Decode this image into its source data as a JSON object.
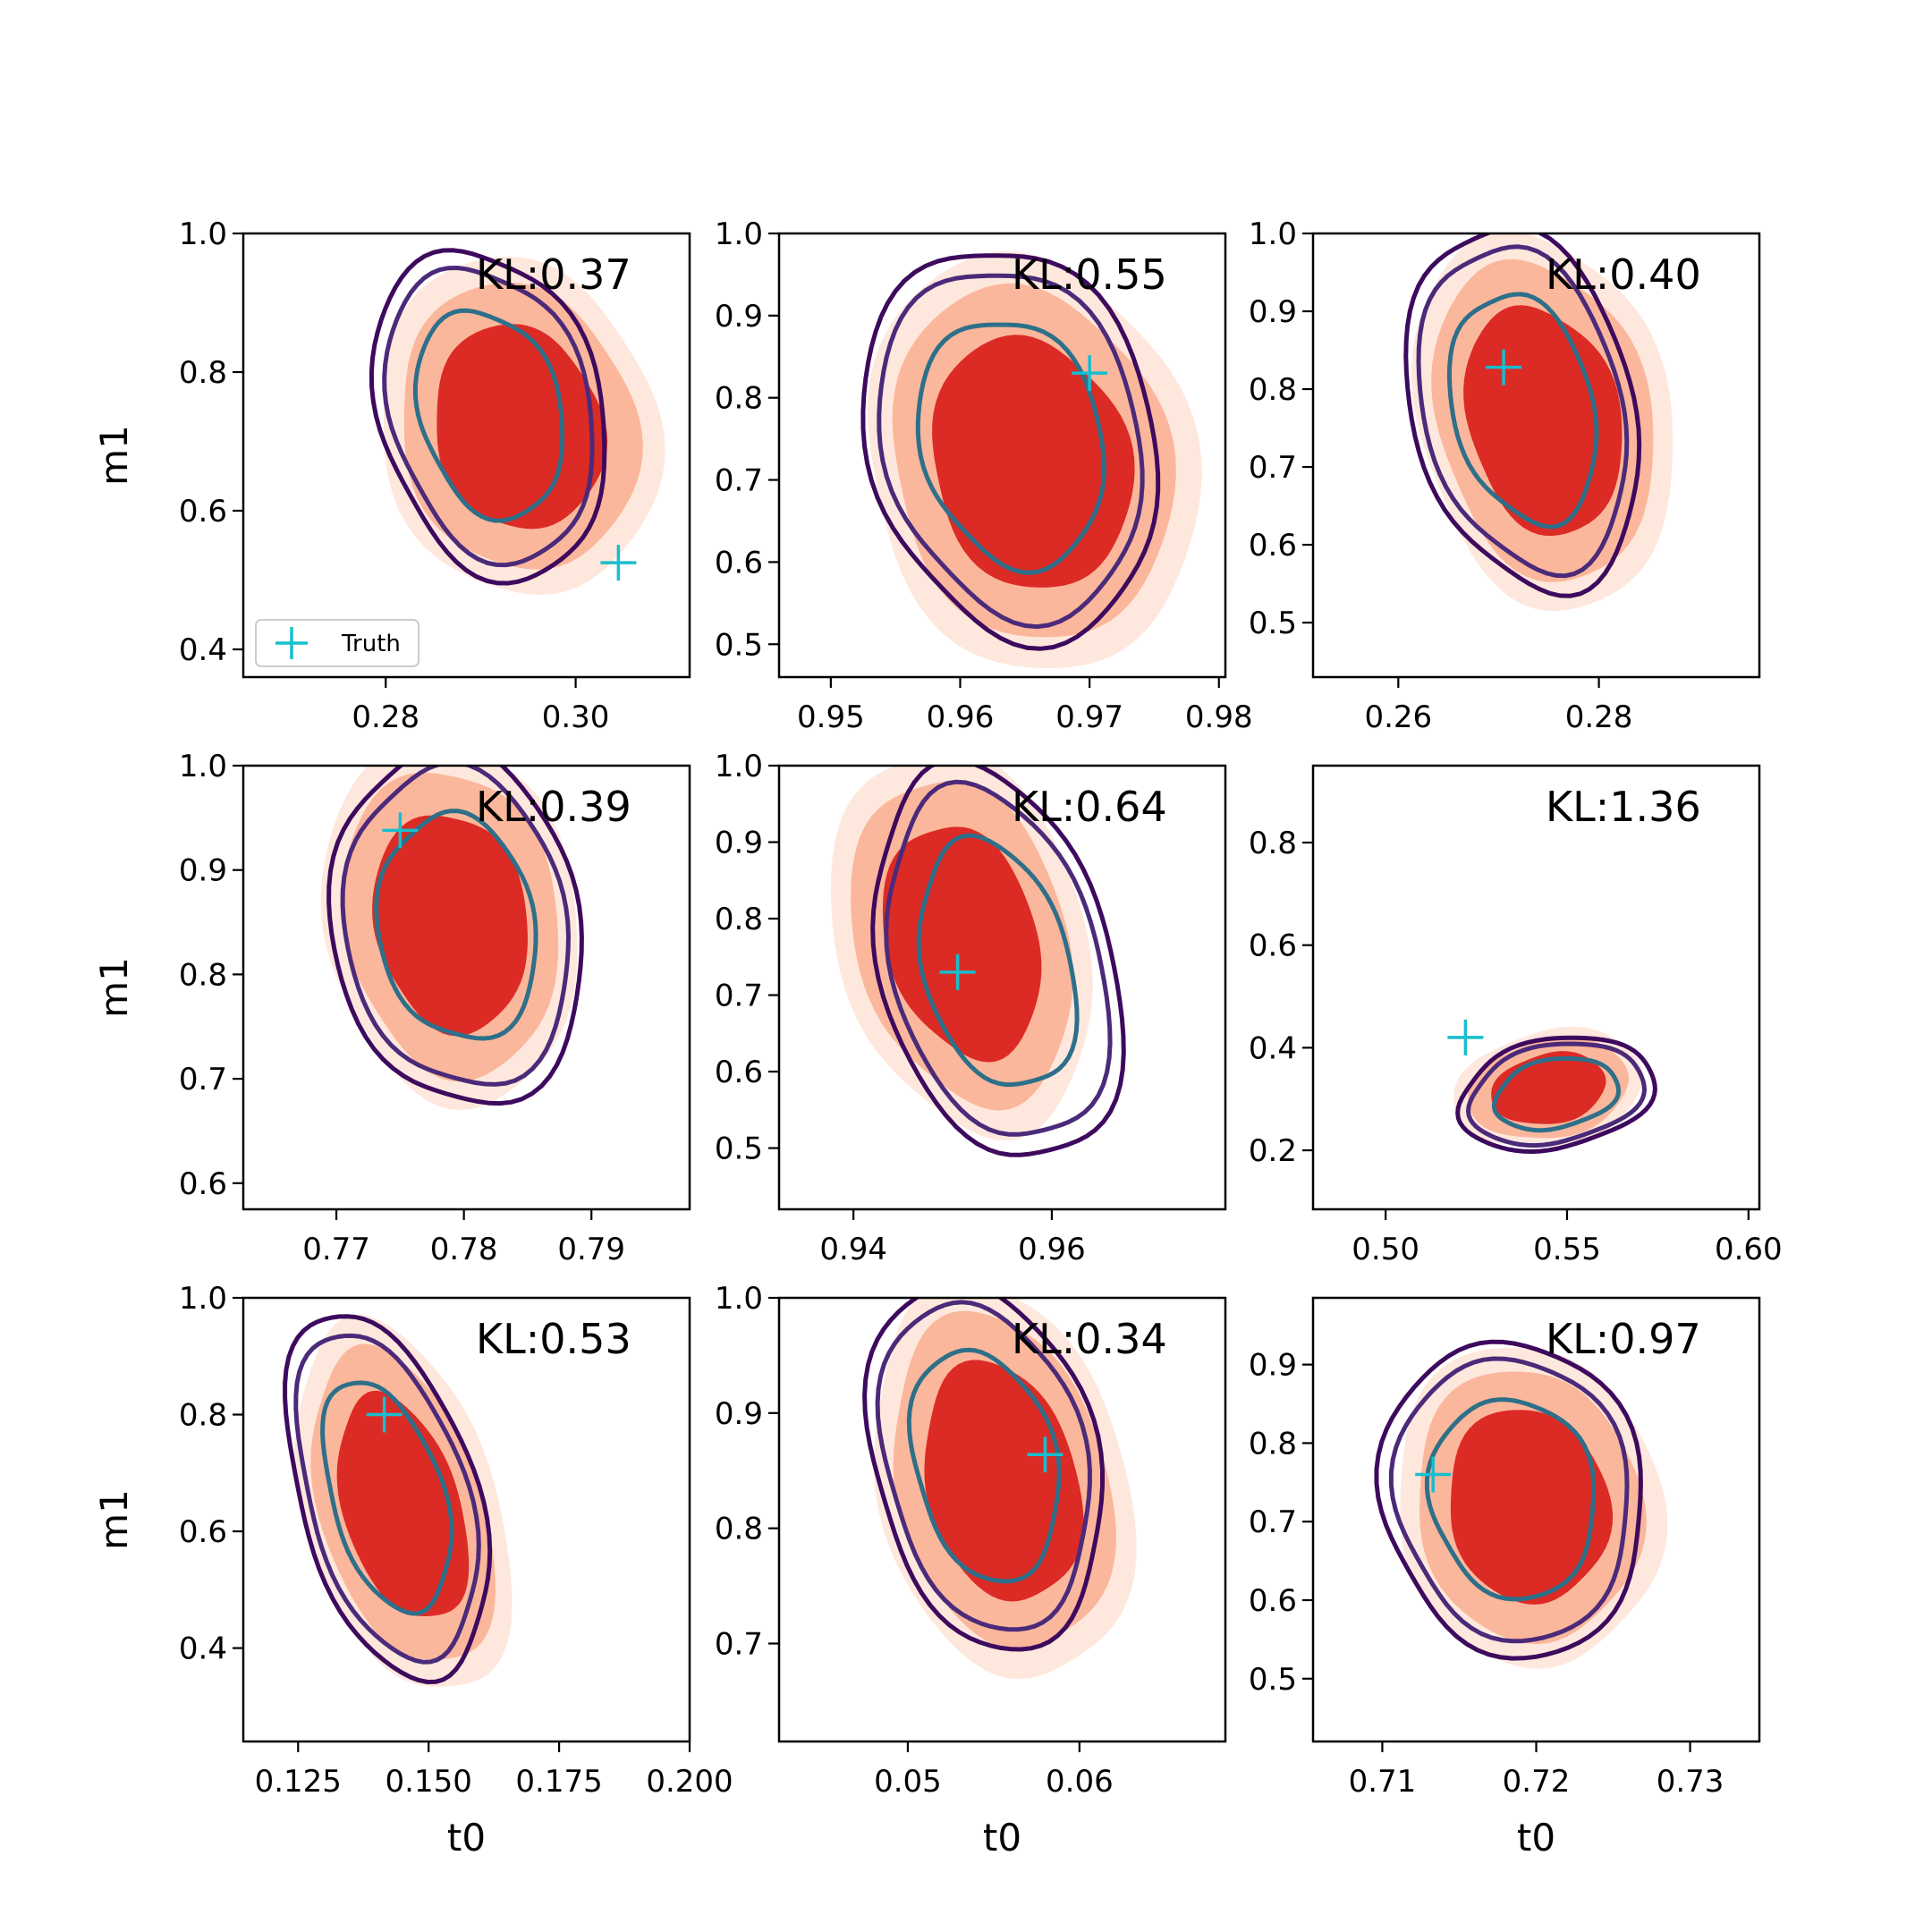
{
  "chart_data": {
    "type": "contour",
    "grid": false,
    "legend": {
      "placement": "lower-left",
      "panel": 0,
      "entries": [
        "Truth"
      ]
    },
    "colors": {
      "fill_outer": "#fee8dd",
      "fill_middle": "#fbb79b",
      "fill_inner": "#dc2a25",
      "line_outer": "#3d0a5e",
      "line_middle": "#4b2a7a",
      "line_inner": "#2e6f8a",
      "truth": "#17becf"
    },
    "panels": [
      {
        "kl": "KL:0.37",
        "xlabel": "",
        "ylabel": "m1",
        "xlim": [
          0.265,
          0.312
        ],
        "ylim": [
          0.36,
          1.0
        ],
        "xticks": [
          0.28,
          0.3
        ],
        "xtick_labels": [
          "0.28",
          "0.30"
        ],
        "yticks": [
          0.4,
          0.6,
          0.8,
          1.0
        ],
        "ytick_labels": [
          "0.4",
          "0.6",
          "0.8",
          "1.0"
        ],
        "truth": [
          0.3045,
          0.525
        ],
        "fill_center": [
          0.294,
          0.72
        ],
        "fill_semi": [
          0.011,
          0.24
        ],
        "fill_tilt": -0.8,
        "line_center": [
          0.291,
          0.74
        ],
        "line_semi": [
          0.009,
          0.24
        ],
        "line_tilt": -0.8
      },
      {
        "kl": "KL:0.55",
        "xlabel": "",
        "ylabel": "",
        "xlim": [
          0.946,
          0.9805
        ],
        "ylim": [
          0.46,
          1.0
        ],
        "xticks": [
          0.95,
          0.96,
          0.97,
          0.98
        ],
        "xtick_labels": [
          "0.95",
          "0.96",
          "0.97",
          "0.98"
        ],
        "yticks": [
          0.5,
          0.6,
          0.7,
          0.8,
          0.9,
          1.0
        ],
        "ytick_labels": [
          "0.5",
          "0.6",
          "0.7",
          "0.8",
          "0.9",
          "1.0"
        ],
        "truth": [
          0.97,
          0.83
        ],
        "fill_center": [
          0.9655,
          0.72
        ],
        "fill_semi": [
          0.0095,
          0.25
        ],
        "fill_tilt": -0.75,
        "line_center": [
          0.964,
          0.745
        ],
        "line_semi": [
          0.0085,
          0.24
        ],
        "line_tilt": -0.75
      },
      {
        "kl": "KL:0.40",
        "xlabel": "",
        "ylabel": "",
        "xlim": [
          0.2515,
          0.296
        ],
        "ylim": [
          0.43,
          1.0
        ],
        "xticks": [
          0.26,
          0.28
        ],
        "xtick_labels": [
          "0.26",
          "0.28"
        ],
        "yticks": [
          0.5,
          0.6,
          0.7,
          0.8,
          0.9,
          1.0
        ],
        "ytick_labels": [
          "0.5",
          "0.6",
          "0.7",
          "0.8",
          "0.9",
          "1.0"
        ],
        "truth": [
          0.2705,
          0.828
        ],
        "fill_center": [
          0.2745,
          0.76
        ],
        "fill_semi": [
          0.0095,
          0.24
        ],
        "fill_tilt": -0.7,
        "line_center": [
          0.2725,
          0.775
        ],
        "line_semi": [
          0.0085,
          0.235
        ],
        "line_tilt": -0.7
      },
      {
        "kl": "KL:0.39",
        "xlabel": "",
        "ylabel": "m1",
        "xlim": [
          0.7627,
          0.7977
        ],
        "ylim": [
          0.575,
          1.0
        ],
        "xticks": [
          0.77,
          0.78,
          0.79
        ],
        "xtick_labels": [
          "0.77",
          "0.78",
          "0.79"
        ],
        "yticks": [
          0.6,
          0.7,
          0.8,
          0.9,
          1.0
        ],
        "ytick_labels": [
          "0.6",
          "0.7",
          "0.8",
          "0.9",
          "1.0"
        ],
        "truth": [
          0.775,
          0.938
        ],
        "fill_center": [
          0.779,
          0.85
        ],
        "fill_semi": [
          0.0075,
          0.17
        ],
        "fill_tilt": -0.5,
        "line_center": [
          0.7795,
          0.845
        ],
        "line_semi": [
          0.0075,
          0.17
        ],
        "line_tilt": -0.5
      },
      {
        "kl": "KL:0.64",
        "xlabel": "",
        "ylabel": "",
        "xlim": [
          0.9325,
          0.9775
        ],
        "ylim": [
          0.42,
          1.0
        ],
        "xticks": [
          0.94,
          0.96
        ],
        "xtick_labels": [
          "0.94",
          "0.96"
        ],
        "yticks": [
          0.5,
          0.6,
          0.7,
          0.8,
          0.9,
          1.0
        ],
        "ytick_labels": [
          "0.5",
          "0.6",
          "0.7",
          "0.8",
          "0.9",
          "1.0"
        ],
        "truth": [
          0.9505,
          0.73
        ],
        "fill_center": [
          0.951,
          0.77
        ],
        "fill_semi": [
          0.0095,
          0.25
        ],
        "fill_tilt": -0.78,
        "line_center": [
          0.9545,
          0.74
        ],
        "line_semi": [
          0.009,
          0.26
        ],
        "line_tilt": -0.78
      },
      {
        "kl": "KL:1.36",
        "xlabel": "",
        "ylabel": "",
        "xlim": [
          0.48,
          0.603
        ],
        "ylim": [
          0.085,
          0.95
        ],
        "xticks": [
          0.5,
          0.55,
          0.6
        ],
        "xtick_labels": [
          "0.50",
          "0.55",
          "0.60"
        ],
        "yticks": [
          0.2,
          0.4,
          0.6,
          0.8
        ],
        "ytick_labels": [
          "0.2",
          "0.4",
          "0.6",
          "0.8"
        ],
        "truth": [
          0.522,
          0.42
        ],
        "fill_center": [
          0.545,
          0.32
        ],
        "fill_semi": [
          0.02,
          0.11
        ],
        "fill_tilt": -0.55,
        "line_center": [
          0.547,
          0.31
        ],
        "line_semi": [
          0.021,
          0.105
        ],
        "line_tilt": -0.55
      },
      {
        "kl": "KL:0.53",
        "xlabel": "t0",
        "ylabel": "m1",
        "xlim": [
          0.1145,
          0.2
        ],
        "ylim": [
          0.24,
          1.0
        ],
        "xticks": [
          0.125,
          0.15,
          0.175,
          0.2
        ],
        "xtick_labels": [
          "0.125",
          "0.150",
          "0.175",
          "0.200"
        ],
        "yticks": [
          0.4,
          0.6,
          0.8,
          1.0
        ],
        "ytick_labels": [
          "0.4",
          "0.6",
          "0.8",
          "1.0"
        ],
        "truth": [
          0.1415,
          0.8
        ],
        "fill_center": [
          0.145,
          0.64
        ],
        "fill_semi": [
          0.014,
          0.32
        ],
        "fill_tilt": -0.85,
        "line_center": [
          0.142,
          0.66
        ],
        "line_semi": [
          0.013,
          0.32
        ],
        "line_tilt": -0.85
      },
      {
        "kl": "KL:0.34",
        "xlabel": "t0",
        "ylabel": "",
        "xlim": [
          0.0425,
          0.0685
        ],
        "ylim": [
          0.615,
          1.0
        ],
        "xticks": [
          0.05,
          0.06
        ],
        "xtick_labels": [
          "0.05",
          "0.06"
        ],
        "yticks": [
          0.7,
          0.8,
          0.9,
          1.0
        ],
        "ytick_labels": [
          "0.7",
          "0.8",
          "0.9",
          "1.0"
        ],
        "truth": [
          0.058,
          0.864
        ],
        "fill_center": [
          0.0555,
          0.84
        ],
        "fill_semi": [
          0.0055,
          0.17
        ],
        "fill_tilt": -0.7,
        "line_center": [
          0.0545,
          0.855
        ],
        "line_semi": [
          0.005,
          0.16
        ],
        "line_tilt": -0.7
      },
      {
        "kl": "KL:0.97",
        "xlabel": "t0",
        "ylabel": "",
        "xlim": [
          0.7055,
          0.7345
        ],
        "ylim": [
          0.42,
          0.985
        ],
        "xticks": [
          0.71,
          0.72,
          0.73
        ],
        "xtick_labels": [
          "0.71",
          "0.72",
          "0.73"
        ],
        "yticks": [
          0.5,
          0.6,
          0.7,
          0.8,
          0.9
        ],
        "ytick_labels": [
          "0.5",
          "0.6",
          "0.7",
          "0.8",
          "0.9"
        ],
        "truth": [
          0.7133,
          0.76
        ],
        "fill_center": [
          0.7195,
          0.72
        ],
        "fill_semi": [
          0.0065,
          0.2
        ],
        "fill_tilt": -0.6,
        "line_center": [
          0.7185,
          0.73
        ],
        "line_semi": [
          0.0065,
          0.2
        ],
        "line_tilt": -0.6
      }
    ]
  }
}
